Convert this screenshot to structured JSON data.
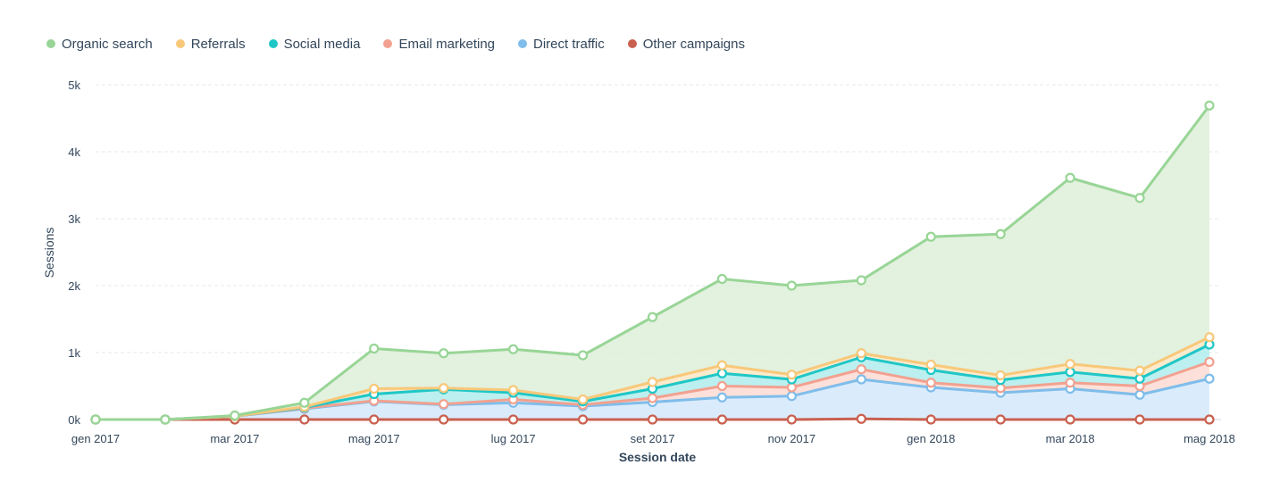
{
  "chart_data": {
    "type": "area",
    "stacked": true,
    "xlabel": "Session date",
    "ylabel": "Sessions",
    "x": [
      "2017-01",
      "2017-02",
      "2017-03",
      "2017-04",
      "2017-05",
      "2017-06",
      "2017-07",
      "2017-08",
      "2017-09",
      "2017-10",
      "2017-11",
      "2017-12",
      "2018-01",
      "2018-02",
      "2018-03",
      "2018-04",
      "2018-05"
    ],
    "x_tick_labels": [
      {
        "x": "2017-01",
        "label": "gen 2017"
      },
      {
        "x": "2017-03",
        "label": "mar 2017"
      },
      {
        "x": "2017-05",
        "label": "mag 2017"
      },
      {
        "x": "2017-07",
        "label": "lug 2017"
      },
      {
        "x": "2017-09",
        "label": "set 2017"
      },
      {
        "x": "2017-11",
        "label": "nov 2017"
      },
      {
        "x": "2018-01",
        "label": "gen 2018"
      },
      {
        "x": "2018-03",
        "label": "mar 2018"
      },
      {
        "x": "2018-05",
        "label": "mag 2018"
      }
    ],
    "ylim": [
      0,
      5000
    ],
    "y_ticks": [
      {
        "value": 0,
        "label": "0k"
      },
      {
        "value": 1000,
        "label": "1k"
      },
      {
        "value": 2000,
        "label": "2k"
      },
      {
        "value": 3000,
        "label": "3k"
      },
      {
        "value": 4000,
        "label": "4k"
      },
      {
        "value": 5000,
        "label": "5k"
      }
    ],
    "grid": true,
    "legend_position": "top-left",
    "series": [
      {
        "name": "Other campaigns",
        "color": "#c9604f",
        "fill": "#f1cfc8",
        "values": [
          0,
          0,
          0,
          0,
          0,
          0,
          0,
          0,
          0,
          0,
          0,
          10,
          0,
          0,
          0,
          0,
          0
        ]
      },
      {
        "name": "Direct traffic",
        "color": "#7fbdea",
        "fill": "#d3e8fb",
        "values": [
          0,
          0,
          50,
          160,
          270,
          220,
          250,
          200,
          260,
          330,
          350,
          590,
          480,
          400,
          460,
          370,
          610
        ]
      },
      {
        "name": "Email marketing",
        "color": "#f2a190",
        "fill": "#fbdbd2",
        "values": [
          0,
          0,
          0,
          10,
          10,
          10,
          50,
          20,
          60,
          170,
          130,
          150,
          70,
          70,
          90,
          130,
          250
        ]
      },
      {
        "name": "Social media",
        "color": "#1fc7c7",
        "fill": "#b0ecec",
        "values": [
          0,
          0,
          0,
          10,
          100,
          220,
          100,
          50,
          140,
          190,
          120,
          180,
          190,
          120,
          160,
          110,
          260
        ]
      },
      {
        "name": "Referrals",
        "color": "#f8c87a",
        "fill": "#fde7c4",
        "values": [
          0,
          0,
          0,
          10,
          80,
          20,
          40,
          30,
          100,
          120,
          70,
          60,
          80,
          70,
          120,
          120,
          110
        ]
      },
      {
        "name": "Organic search",
        "color": "#98d596",
        "fill": "#deefd9",
        "values": [
          0,
          0,
          10,
          60,
          600,
          520,
          610,
          660,
          970,
          1290,
          1330,
          1090,
          1910,
          2110,
          2780,
          2580,
          3460
        ]
      }
    ],
    "legend_order": [
      "Organic search",
      "Referrals",
      "Social media",
      "Email marketing",
      "Direct traffic",
      "Other campaigns"
    ]
  }
}
